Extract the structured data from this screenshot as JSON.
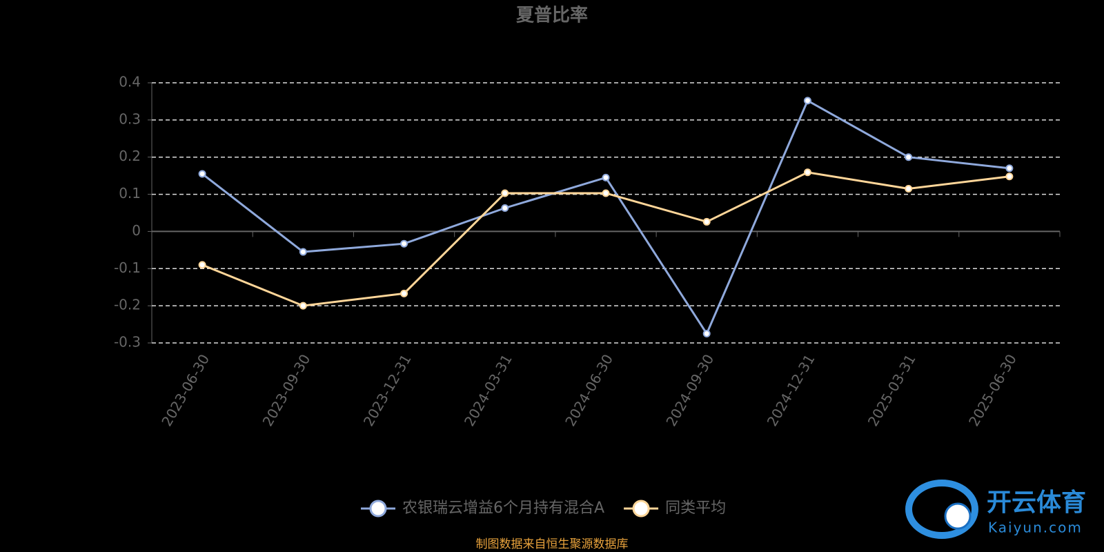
{
  "chart_data": {
    "type": "line",
    "title": "夏普比率",
    "categories": [
      "2023-06-30",
      "2023-09-30",
      "2023-12-31",
      "2024-03-31",
      "2024-06-30",
      "2024-09-30",
      "2024-12-31",
      "2025-03-31",
      "2025-06-30"
    ],
    "series": [
      {
        "name": "农银瑞云增益6个月持有混合A",
        "color": "#8fa9dc",
        "values": [
          0.155,
          -0.055,
          -0.033,
          0.063,
          0.145,
          -0.275,
          0.352,
          0.2,
          0.17
        ]
      },
      {
        "name": "同类平均",
        "color": "#ffd699",
        "values": [
          -0.09,
          -0.2,
          -0.167,
          0.103,
          0.103,
          0.026,
          0.159,
          0.115,
          0.148
        ]
      }
    ],
    "ylim": [
      -0.3,
      0.4
    ],
    "yticks": [
      -0.3,
      -0.2,
      -0.1,
      0,
      0.1,
      0.2,
      0.3,
      0.4
    ],
    "grid": true,
    "source": "制图数据来自恒生聚源数据库",
    "watermark": {
      "name": "开云体育",
      "site": "Kaiyun.com"
    }
  }
}
